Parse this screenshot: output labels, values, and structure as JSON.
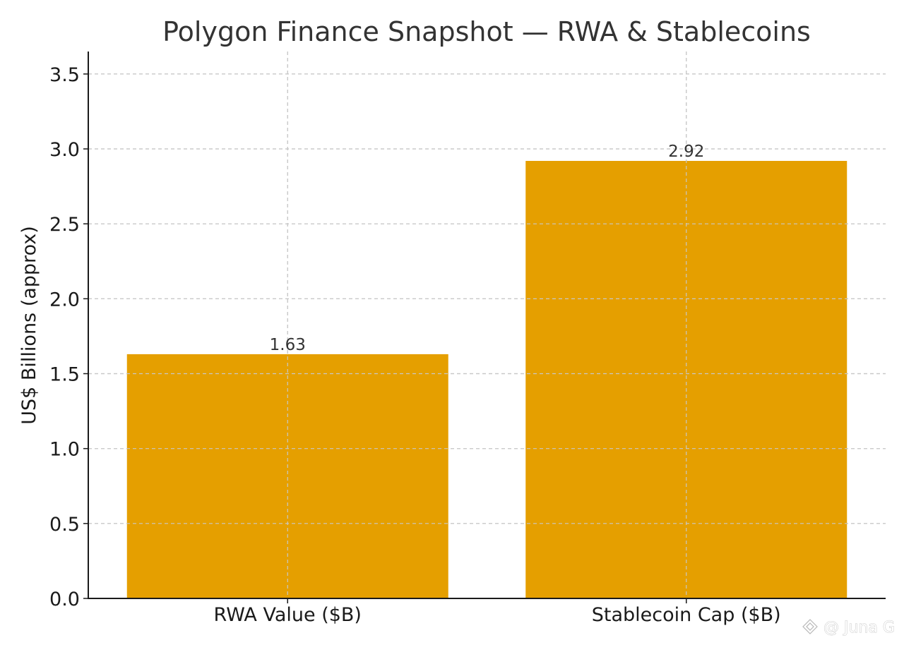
{
  "chart_data": {
    "type": "bar",
    "title": "Polygon Finance Snapshot — RWA & Stablecoins",
    "xlabel": "",
    "ylabel": "US$ Billions (approx)",
    "categories": [
      "RWA Value ($B)",
      "Stablecoin Cap ($B)"
    ],
    "values": [
      1.63,
      2.92
    ],
    "value_labels": [
      "1.63",
      "2.92"
    ],
    "ylim": [
      0,
      3.65
    ],
    "yticks": [
      0.0,
      0.5,
      1.0,
      1.5,
      2.0,
      2.5,
      3.0,
      3.5
    ],
    "ytick_labels": [
      "0.0",
      "0.5",
      "1.0",
      "1.5",
      "2.0",
      "2.5",
      "3.0",
      "3.5"
    ],
    "grid": true,
    "bar_color": "#e59f00"
  },
  "watermark": {
    "text": "@ Juna G",
    "icon": "binance-logo-icon"
  }
}
